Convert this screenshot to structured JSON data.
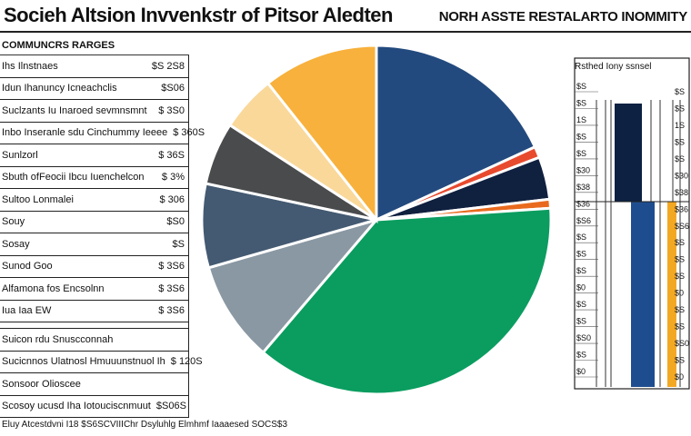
{
  "header": {
    "title": "Socieh Altsion Invvenkstr of Pitsor Aledten",
    "right_title": "NORH ASSTE RESTALARTO INOMMITY"
  },
  "left_panel": {
    "header": "COMMUNCRS RARGES",
    "rows": [
      {
        "label": "Ihs Ilnstnaes",
        "value": "$S 2S8"
      },
      {
        "label": "Idun Ihanuncy Icneachclis",
        "value": "$S06"
      },
      {
        "label": "Suclzants Iu Inaroed sevmnsmnt",
        "value": "$ 3S0"
      },
      {
        "label": "Inbo Inseranle sdu Cinchummy Ieeee",
        "value": "$ 360S"
      },
      {
        "label": "Sunlzorl",
        "value": "$ 36S"
      },
      {
        "label": "Sbuth ofFeocii Ibcu Iuenchelcon",
        "value": "$ 3%"
      },
      {
        "label": "Sultoo Lonmalei",
        "value": "$ 306"
      },
      {
        "label": "Souy",
        "value": "$S0"
      },
      {
        "label": "Sosay",
        "value": "$S"
      },
      {
        "label": "Sunod Goo",
        "value": "$ 3S6"
      },
      {
        "label": "Alfamona fos Encsolnn",
        "value": "$ 3S6"
      },
      {
        "label": "Iua Iaa EW",
        "value": "$ 3S6"
      }
    ],
    "rows2": [
      {
        "label": "Suicon rdu Snuscconnah",
        "value": ""
      },
      {
        "label": "Sucicnnos Ulatnosl Hmuuunstnuol Ih",
        "value": "$ 120S"
      },
      {
        "label": "Sonsoor Olioscee",
        "value": ""
      },
      {
        "label": "Scosoy ucusd Iha Iotouciscnmuut",
        "value": "$S06S"
      }
    ]
  },
  "footnote": "Eluy Atcestdvni I18 $S6SCVIIIChr Dsyluhlg Elmhmf Iaaaesed SOCS$3",
  "chart_data": [
    {
      "type": "pie",
      "slices": [
        {
          "label": "Navy blue",
          "value": 17.5,
          "color": "#234a7e"
        },
        {
          "label": "Red-orange",
          "value": 1.0,
          "color": "#e84a2e"
        },
        {
          "label": "Dark navy",
          "value": 3.8,
          "color": "#10203f"
        },
        {
          "label": "Orange",
          "value": 0.8,
          "color": "#e96a1e"
        },
        {
          "label": "Green",
          "value": 36.0,
          "color": "#0a9d5f"
        },
        {
          "label": "Gray-blue",
          "value": 9.0,
          "color": "#8a98a3"
        },
        {
          "label": "Slate",
          "value": 7.5,
          "color": "#445a72"
        },
        {
          "label": "Charcoal",
          "value": 5.6,
          "color": "#4a4b4d"
        },
        {
          "label": "Cream",
          "value": 5.0,
          "color": "#f9d89a"
        },
        {
          "label": "Gold",
          "value": 10.3,
          "color": "#f7b13c"
        }
      ]
    },
    {
      "type": "bar",
      "title": "Rsthed Iony ssnsel",
      "tick_labels": [
        "$S",
        "$S",
        "1S",
        "$S",
        "$S",
        "$30",
        "$38",
        "$36",
        "$S6",
        "$S",
        "$S",
        "$S",
        "$0",
        "$S",
        "$S",
        "$S0",
        "$S",
        "$0"
      ],
      "bars": [
        {
          "name": "Dark navy",
          "value": 1.0,
          "color": "#0d2142"
        },
        {
          "name": "Blue",
          "value": 1.0,
          "color": "#1e4d8f"
        },
        {
          "name": "Gold",
          "value": 1.0,
          "color": "#f3a824"
        }
      ]
    }
  ]
}
